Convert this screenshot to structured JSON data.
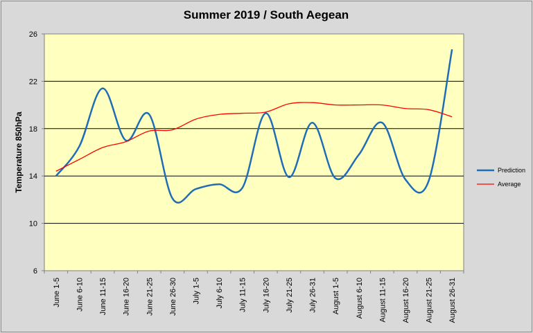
{
  "chart_data": {
    "type": "line",
    "title": "Summer 2019 / South Aegean",
    "ylabel": "Temperature 850hPa",
    "xlabel": "",
    "ylim": [
      6,
      26
    ],
    "yticks": [
      6,
      10,
      14,
      18,
      22,
      26
    ],
    "grid": true,
    "legend_position": "right",
    "plot_background": "#ffffc0",
    "categories": [
      "June 1-5",
      "June 6-10",
      "June 11-15",
      "June 16-20",
      "June 21-25",
      "June 26-30",
      "July 1-5",
      "July 6-10",
      "July 11-15",
      "July 16-20",
      "July 21-25",
      "July 26-31",
      "August 1-5",
      "August 6-10",
      "August 11-15",
      "August 16-20",
      "August 21-25",
      "August 26-31"
    ],
    "series": [
      {
        "name": "Prediction",
        "color": "#1f6db5",
        "values": [
          14.0,
          16.5,
          21.4,
          17.0,
          19.2,
          12.1,
          12.9,
          13.3,
          13.0,
          19.3,
          13.9,
          18.5,
          13.8,
          15.8,
          18.5,
          13.7,
          13.6,
          24.7
        ]
      },
      {
        "name": "Average",
        "color": "#ff0000",
        "values": [
          14.4,
          15.4,
          16.4,
          16.9,
          17.8,
          17.9,
          18.8,
          19.2,
          19.3,
          19.4,
          20.1,
          20.2,
          20.0,
          20.0,
          20.0,
          19.7,
          19.6,
          19.0
        ]
      }
    ]
  }
}
